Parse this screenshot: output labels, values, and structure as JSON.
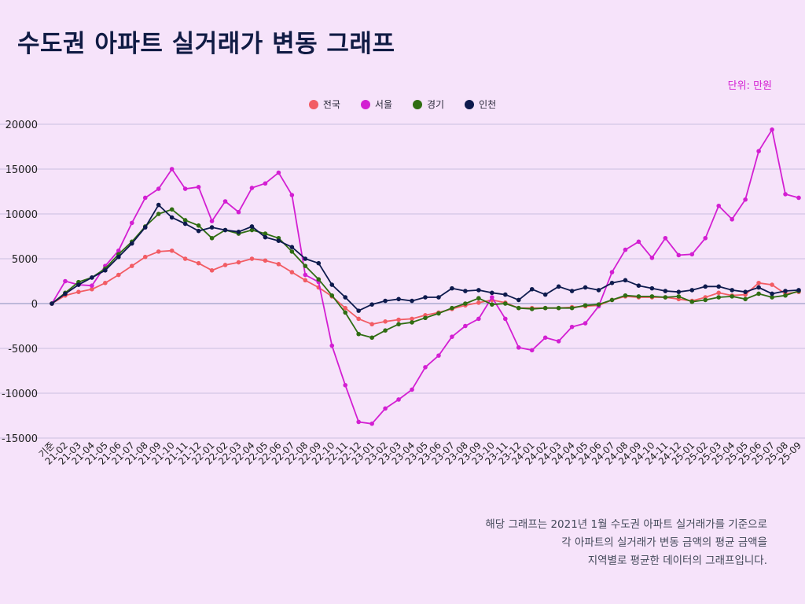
{
  "title": "수도권 아파트 실거래가 변동 그래프",
  "unit": "단위: 만원",
  "footnote": [
    "해당 그래프는 2021년 1월 수도권 아파트 실거래가를 기준으로",
    "각 아파트의 실거래가 변동 금액의 평균 금액을",
    "지역별로 평균한 데이터의 그래프입니다."
  ],
  "colors": {
    "background": "#f6e3fa",
    "title": "#101b44",
    "unit": "#d31fd2",
    "grid": "#cbbfe0",
    "zero_line": "#9d9ec8"
  },
  "chart_data": {
    "type": "line",
    "ylim": [
      -15000,
      20000
    ],
    "yticks": [
      20000,
      15000,
      10000,
      5000,
      0,
      -5000,
      -10000,
      -15000
    ],
    "grid": true,
    "legend_position": "top-center",
    "categories": [
      "기준",
      "21-02",
      "21-03",
      "21-04",
      "21-05",
      "21-06",
      "21-07",
      "21-08",
      "21-09",
      "21-10",
      "21-11",
      "21-12",
      "22-01",
      "22-02",
      "22-03",
      "22-04",
      "22-05",
      "22-06",
      "22-07",
      "22-08",
      "22-09",
      "22-10",
      "22-11",
      "22-12",
      "23-01",
      "23-02",
      "23-03",
      "23-04",
      "23-05",
      "23-06",
      "23-07",
      "23-08",
      "23-09",
      "23-10",
      "23-11",
      "23-12",
      "24-01",
      "24-02",
      "24-03",
      "24-04",
      "24-05",
      "24-06",
      "24-07",
      "24-08",
      "24-09",
      "24-10",
      "24-11",
      "24-12",
      "25-01",
      "25-02",
      "25-03",
      "25-04",
      "25-05",
      "25-06",
      "25-07",
      "25-08",
      "25-09"
    ],
    "series": [
      {
        "name": "전국",
        "color": "#f25c64",
        "values": [
          0,
          900,
          1300,
          1600,
          2300,
          3200,
          4200,
          5200,
          5800,
          5900,
          5000,
          4500,
          3700,
          4300,
          4600,
          5000,
          4800,
          4400,
          3500,
          2600,
          1800,
          800,
          -500,
          -1700,
          -2300,
          -2000,
          -1800,
          -1700,
          -1300,
          -1000,
          -600,
          -200,
          100,
          400,
          100,
          -500,
          -500,
          -500,
          -500,
          -400,
          -300,
          -200,
          400,
          800,
          700,
          700,
          700,
          500,
          300,
          700,
          1200,
          900,
          1000,
          2300,
          2100,
          1100,
          1300
        ]
      },
      {
        "name": "서울",
        "color": "#d31fd2",
        "values": [
          0,
          2500,
          2100,
          2000,
          4200,
          5900,
          9000,
          11800,
          12800,
          15000,
          12800,
          13000,
          9200,
          11400,
          10200,
          12900,
          13400,
          14600,
          12100,
          3200,
          2400,
          -4700,
          -9100,
          -13200,
          -13400,
          -11700,
          -10700,
          -9600,
          -7100,
          -5800,
          -3700,
          -2500,
          -1700,
          700,
          -1700,
          -4900,
          -5200,
          -3800,
          -4200,
          -2600,
          -2200,
          -300,
          3500,
          6000,
          6900,
          5100,
          7300,
          5400,
          5500,
          7300,
          10900,
          9400,
          11600,
          17000,
          19400,
          12200,
          11800
        ]
      },
      {
        "name": "경기",
        "color": "#2f6d12",
        "values": [
          0,
          1200,
          2400,
          2900,
          3900,
          5500,
          6900,
          8600,
          10000,
          10500,
          9300,
          8700,
          7300,
          8200,
          7800,
          8200,
          7800,
          7300,
          5800,
          4200,
          2700,
          900,
          -1000,
          -3400,
          -3800,
          -3000,
          -2300,
          -2100,
          -1600,
          -1100,
          -500,
          0,
          600,
          -100,
          0,
          -500,
          -600,
          -500,
          -500,
          -500,
          -200,
          -100,
          400,
          900,
          800,
          800,
          700,
          800,
          200,
          400,
          700,
          800,
          500,
          1100,
          700,
          900,
          1400
        ]
      },
      {
        "name": "인천",
        "color": "#0d1a4d",
        "values": [
          0,
          1100,
          2100,
          2900,
          3700,
          5200,
          6700,
          8500,
          11000,
          9600,
          8900,
          8100,
          8500,
          8200,
          8000,
          8600,
          7400,
          7000,
          6300,
          5000,
          4500,
          2100,
          700,
          -800,
          -100,
          300,
          500,
          300,
          700,
          700,
          1700,
          1400,
          1500,
          1200,
          1000,
          400,
          1600,
          1000,
          1900,
          1400,
          1800,
          1500,
          2300,
          2600,
          2000,
          1700,
          1400,
          1300,
          1500,
          1900,
          1900,
          1500,
          1300,
          1800,
          1100,
          1400,
          1500
        ]
      }
    ]
  }
}
